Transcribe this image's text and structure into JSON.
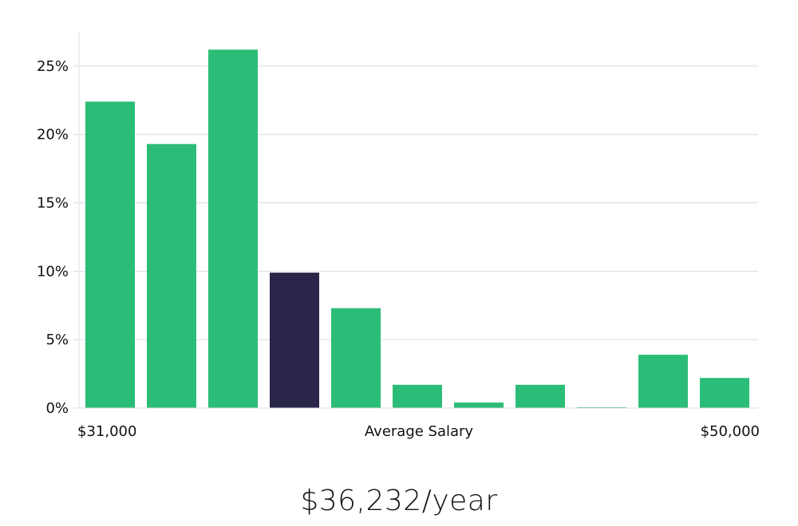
{
  "chart_data": {
    "type": "bar",
    "values": [
      22.4,
      19.3,
      26.2,
      9.9,
      7.3,
      1.7,
      0.4,
      1.7,
      0.05,
      3.9,
      2.2
    ],
    "highlight_index": 3,
    "ylim": [
      0,
      27.5
    ],
    "yticks": [
      0,
      5,
      10,
      15,
      20,
      25
    ],
    "ytick_labels": [
      "0%",
      "5%",
      "10%",
      "15%",
      "20%",
      "25%"
    ],
    "x_min_label": "$31,000",
    "x_max_label": "$50,000",
    "xlabel": "Average Salary",
    "grid": true,
    "colors": {
      "bar": "#2bbd77",
      "highlight": "#29264a",
      "grid": "#dcdcdc"
    }
  },
  "summary": {
    "value_text": "$36,232/year"
  }
}
